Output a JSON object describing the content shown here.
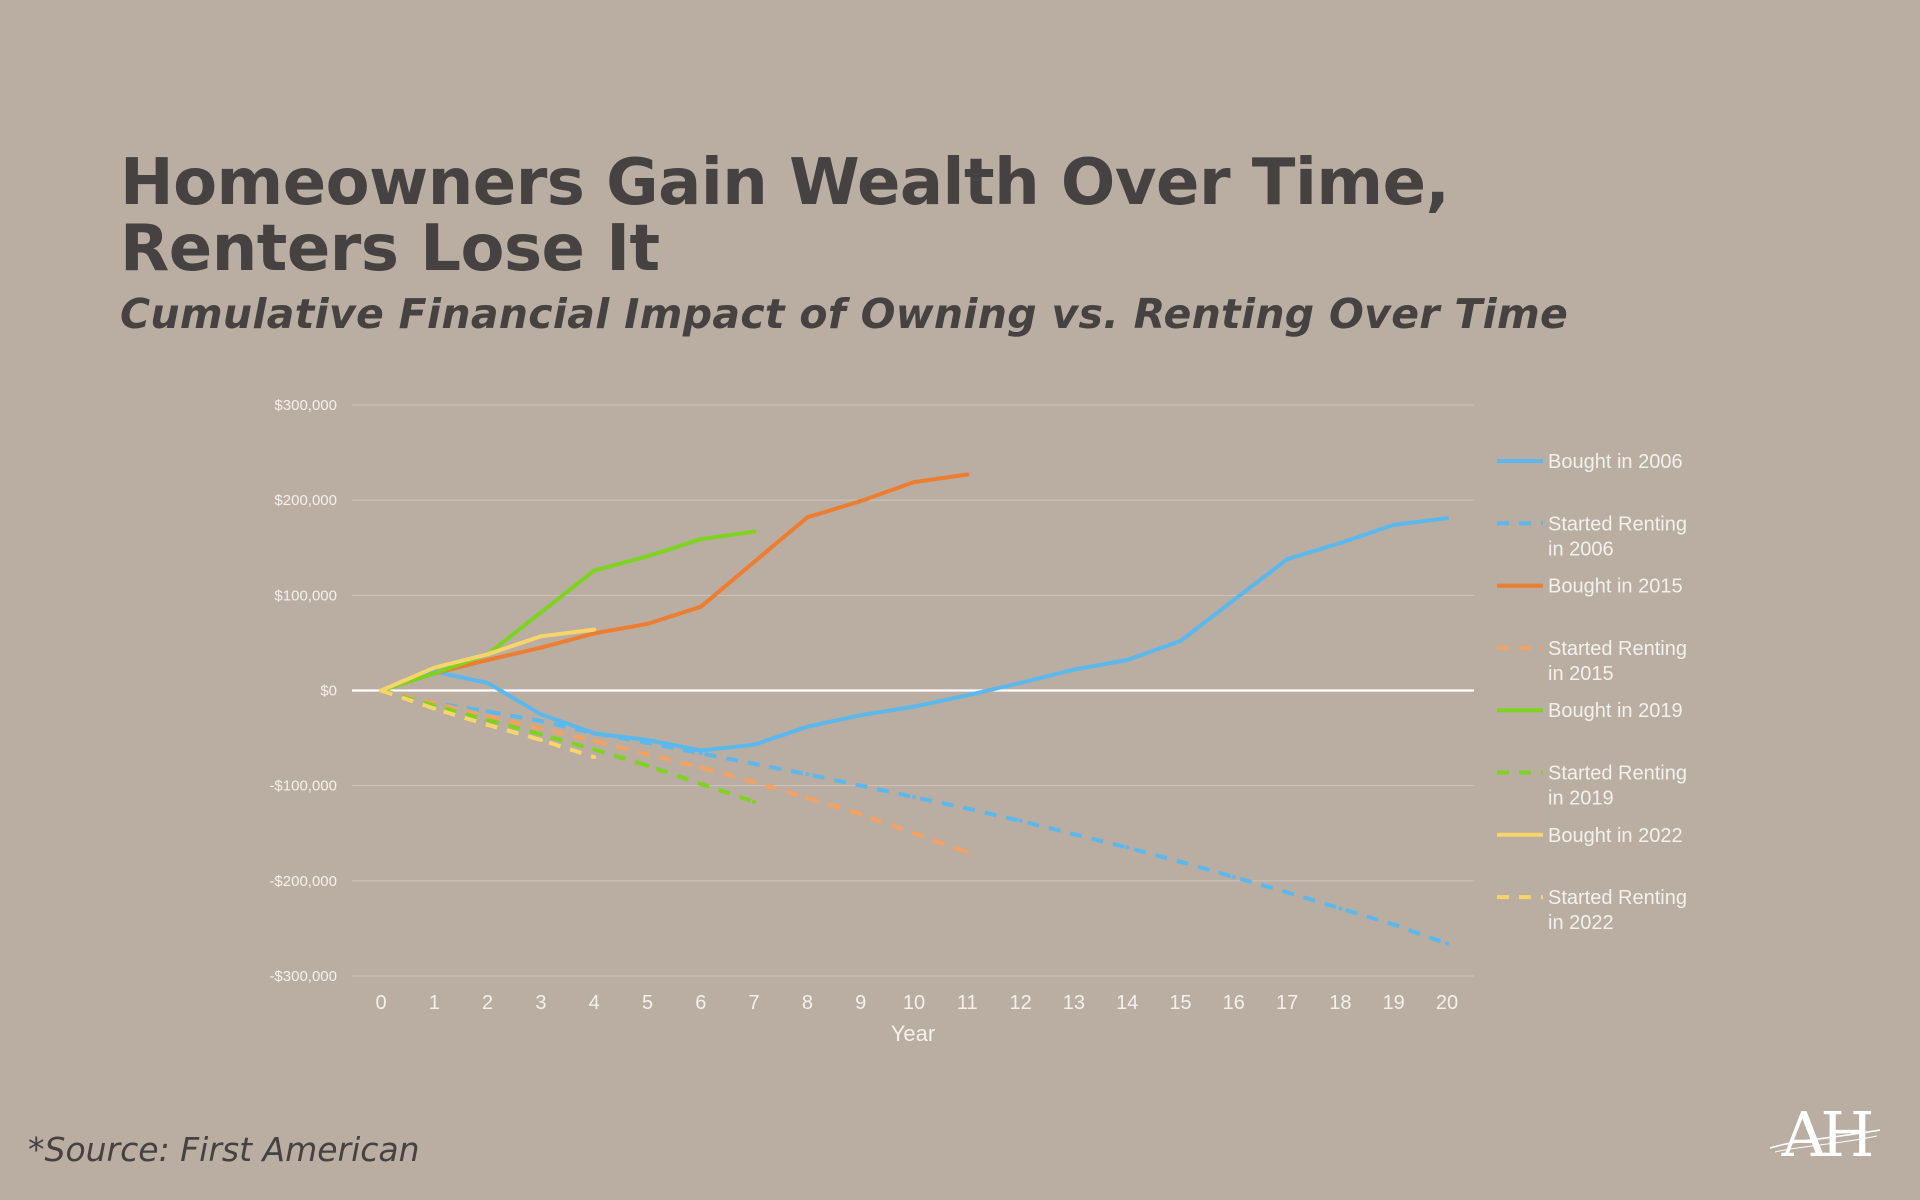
{
  "slide": {
    "title": "Homeowners Gain Wealth Over Time, Renters Lose It",
    "subtitle": "Cumulative Financial Impact of Owning vs. Renting Over Time",
    "source": "*Source: First American",
    "logo_text": "AH"
  },
  "colors": {
    "background": "#baada2",
    "title": "#454241",
    "axis_text": "#f4f1ec",
    "gridline": "#cfc5bc",
    "zero_line": "#ffffff"
  },
  "chart_data": {
    "type": "line",
    "title": "",
    "xlabel": "Year",
    "ylabel": "",
    "xlim": [
      0,
      20
    ],
    "ylim": [
      -300000,
      300000
    ],
    "x_ticks": [
      0,
      1,
      2,
      3,
      4,
      5,
      6,
      7,
      8,
      9,
      10,
      11,
      12,
      13,
      14,
      15,
      16,
      17,
      18,
      19,
      20
    ],
    "y_ticks": [
      {
        "value": 300000,
        "label": "$300,000"
      },
      {
        "value": 200000,
        "label": "$200,000"
      },
      {
        "value": 100000,
        "label": "$100,000"
      },
      {
        "value": 0,
        "label": "$0"
      },
      {
        "value": -100000,
        "label": "-$100,000"
      },
      {
        "value": -200000,
        "label": "-$200,000"
      },
      {
        "value": -300000,
        "label": "-$300,000"
      }
    ],
    "grid": true,
    "legend_position": "right",
    "series": [
      {
        "name": "Bought in 2006",
        "style": "solid",
        "color": "#5bb8ec",
        "x": [
          0,
          1,
          2,
          3,
          4,
          5,
          6,
          7,
          8,
          9,
          10,
          11,
          12,
          13,
          14,
          15,
          16,
          17,
          18,
          19,
          20
        ],
        "values": [
          0,
          20000,
          8000,
          -25000,
          -45000,
          -52000,
          -63000,
          -57000,
          -38000,
          -26000,
          -17000,
          -5000,
          8000,
          22000,
          32000,
          52000,
          95000,
          138000,
          155000,
          174000,
          181000
        ]
      },
      {
        "name": "Started Renting in 2006",
        "style": "dashed",
        "color": "#5bb8ec",
        "x": [
          0,
          1,
          2,
          3,
          4,
          5,
          6,
          7,
          8,
          9,
          10,
          11,
          12,
          13,
          14,
          15,
          16,
          17,
          18,
          19,
          20
        ],
        "values": [
          0,
          -13000,
          -22000,
          -32000,
          -45000,
          -55000,
          -66000,
          -77000,
          -88000,
          -100000,
          -112000,
          -124000,
          -137000,
          -151000,
          -165000,
          -180000,
          -196000,
          -212000,
          -229000,
          -246000,
          -266000
        ]
      },
      {
        "name": "Bought in 2015",
        "style": "solid",
        "color": "#ed7d31",
        "x": [
          0,
          1,
          2,
          3,
          4,
          5,
          6,
          7,
          8,
          9,
          10,
          11
        ],
        "values": [
          0,
          18000,
          32000,
          45000,
          60000,
          70000,
          88000,
          135000,
          182000,
          199000,
          219000,
          227000
        ]
      },
      {
        "name": "Started Renting in 2015",
        "style": "dashed",
        "color": "#f4a162",
        "x": [
          0,
          1,
          2,
          3,
          4,
          5,
          6,
          7,
          8,
          9,
          10,
          11
        ],
        "values": [
          0,
          -13000,
          -27000,
          -40000,
          -53000,
          -67000,
          -81000,
          -96000,
          -113000,
          -130000,
          -150000,
          -170000
        ]
      },
      {
        "name": "Bought in 2019",
        "style": "solid",
        "color": "#7ed321",
        "x": [
          0,
          1,
          2,
          3,
          4,
          5,
          6,
          7
        ],
        "values": [
          0,
          18000,
          38000,
          82000,
          126000,
          141000,
          159000,
          167000
        ]
      },
      {
        "name": "Started Renting in 2019",
        "style": "dashed",
        "color": "#7ed321",
        "x": [
          0,
          1,
          2,
          3,
          4,
          5,
          6,
          7
        ],
        "values": [
          0,
          -16000,
          -31000,
          -46000,
          -62000,
          -79000,
          -98000,
          -117000
        ]
      },
      {
        "name": "Bought in 2022",
        "style": "solid",
        "color": "#f7d56b",
        "x": [
          0,
          1,
          2,
          3,
          4
        ],
        "values": [
          0,
          24000,
          38000,
          57000,
          64000
        ]
      },
      {
        "name": "Started Renting in 2022",
        "style": "dashed",
        "color": "#f7d56b",
        "x": [
          0,
          1,
          2,
          3,
          4
        ],
        "values": [
          0,
          -19000,
          -36000,
          -52000,
          -70000
        ]
      }
    ]
  }
}
